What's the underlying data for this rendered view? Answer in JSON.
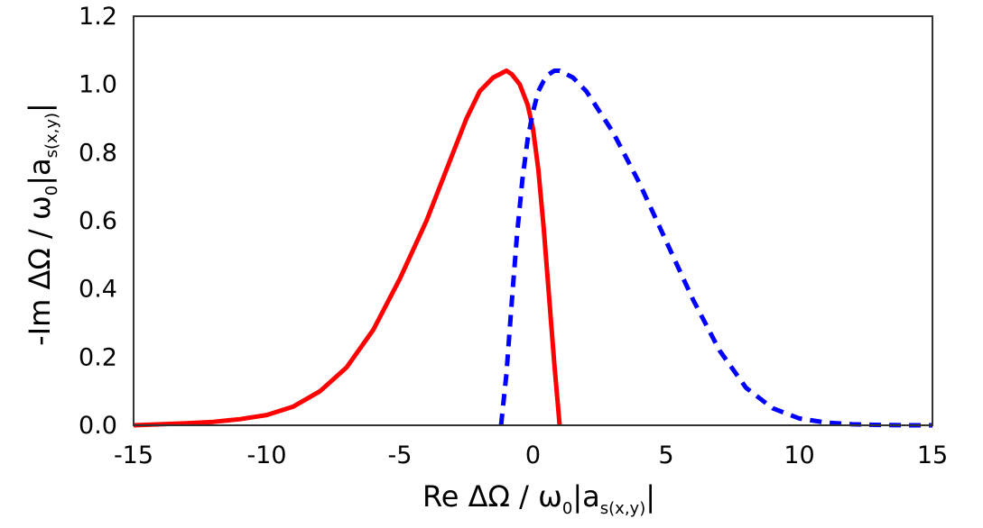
{
  "chart_data": {
    "type": "line",
    "xlabel": {
      "prefix": "Re ΔΩ / ω",
      "omega_sub": "0",
      "mid": "|a",
      "a_sub": "s(x,y)",
      "suffix": "|"
    },
    "ylabel": {
      "prefix": "-Im ΔΩ / ω",
      "omega_sub": "0",
      "mid": "|a",
      "a_sub": "s(x,y)",
      "suffix": "|"
    },
    "xlim": [
      -15,
      15
    ],
    "ylim": [
      0,
      1.2
    ],
    "xticks": [
      -15,
      -10,
      -5,
      0,
      5,
      10,
      15
    ],
    "xtick_labels": [
      "-15",
      "-10",
      "-5",
      "0",
      "5",
      "10",
      "15"
    ],
    "yticks": [
      0.0,
      0.2,
      0.4,
      0.6,
      0.8,
      1.0,
      1.2
    ],
    "ytick_labels": [
      "0.0",
      "0.2",
      "0.4",
      "0.6",
      "0.8",
      "1.0",
      "1.2"
    ],
    "grid": false,
    "legend": "none",
    "series": [
      {
        "color": "#ff0000",
        "style": "solid",
        "x": [
          -15,
          -14,
          -13,
          -12,
          -11,
          -10,
          -9,
          -8,
          -7,
          -6,
          -5,
          -4,
          -3,
          -2.5,
          -2,
          -1.5,
          -1,
          -0.8,
          -0.5,
          -0.2,
          0,
          0.2,
          0.4,
          0.6,
          0.8,
          1.0
        ],
        "y": [
          0.0,
          0.003,
          0.006,
          0.01,
          0.018,
          0.03,
          0.055,
          0.1,
          0.17,
          0.28,
          0.43,
          0.6,
          0.8,
          0.9,
          0.98,
          1.02,
          1.04,
          1.03,
          1.0,
          0.94,
          0.87,
          0.75,
          0.58,
          0.38,
          0.18,
          0.0
        ]
      },
      {
        "color": "#0000ff",
        "style": "dashed",
        "x": [
          -1.2,
          -1.0,
          -0.8,
          -0.6,
          -0.4,
          -0.2,
          0,
          0.2,
          0.4,
          0.6,
          0.8,
          1.0,
          1.5,
          2,
          3,
          4,
          5,
          6,
          7,
          8,
          9,
          10,
          11,
          12,
          13,
          14,
          15
        ],
        "y": [
          0.0,
          0.15,
          0.36,
          0.56,
          0.72,
          0.84,
          0.92,
          0.98,
          1.01,
          1.03,
          1.04,
          1.04,
          1.02,
          0.98,
          0.86,
          0.71,
          0.54,
          0.37,
          0.22,
          0.11,
          0.05,
          0.02,
          0.008,
          0.003,
          0.001,
          0.0,
          0.0
        ]
      }
    ]
  }
}
